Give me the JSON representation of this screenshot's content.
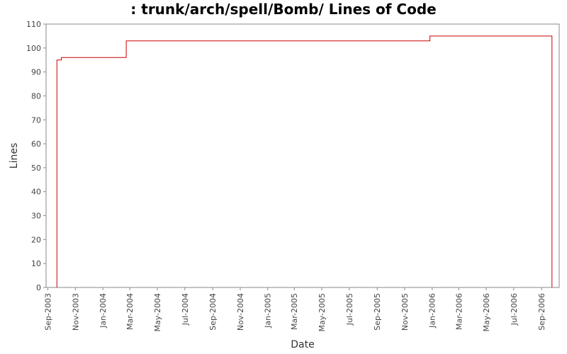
{
  "chart_data": {
    "type": "line",
    "title": ": trunk/arch/spell/Bomb/ Lines of Code",
    "xlabel": "Date",
    "ylabel": "Lines",
    "ylim": [
      0,
      110
    ],
    "y_ticks": [
      0,
      10,
      20,
      30,
      40,
      50,
      60,
      70,
      80,
      90,
      100,
      110
    ],
    "x_ticks": [
      "Sep-2003",
      "Nov-2003",
      "Jan-2004",
      "Mar-2004",
      "May-2004",
      "Jul-2004",
      "Sep-2004",
      "Nov-2004",
      "Jan-2005",
      "Mar-2005",
      "May-2005",
      "Jul-2005",
      "Sep-2005",
      "Nov-2005",
      "Jan-2006",
      "Mar-2006",
      "May-2006",
      "Jul-2006",
      "Sep-2006"
    ],
    "xlim": [
      "2003-08-28",
      "2006-10-10"
    ],
    "grid": false,
    "line_color": "#cc0000",
    "series": [
      {
        "step": true,
        "points": [
          {
            "x": "2003-09-21",
            "y": 0
          },
          {
            "x": "2003-09-21",
            "y": 95
          },
          {
            "x": "2003-10-01",
            "y": 95
          },
          {
            "x": "2003-10-01",
            "y": 96
          },
          {
            "x": "2004-02-22",
            "y": 96
          },
          {
            "x": "2004-02-22",
            "y": 103
          },
          {
            "x": "2005-12-27",
            "y": 103
          },
          {
            "x": "2005-12-27",
            "y": 105
          },
          {
            "x": "2006-09-24",
            "y": 105
          },
          {
            "x": "2006-09-24",
            "y": 0
          }
        ]
      }
    ]
  }
}
